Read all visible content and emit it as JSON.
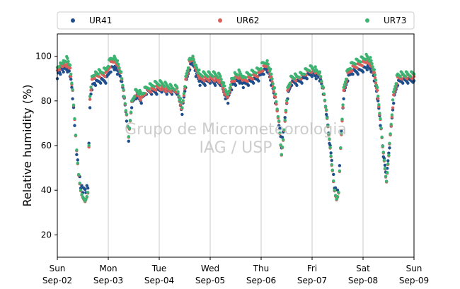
{
  "chart_data": {
    "type": "scatter",
    "ylabel": "Relative humidity (%)",
    "xlabel": "",
    "ylim": [
      10,
      110
    ],
    "yticks": [
      20,
      40,
      60,
      80,
      100
    ],
    "xlim": [
      0,
      7
    ],
    "x_unit": "days",
    "x_ticks": [
      {
        "day": "Sun",
        "date": "Sep-02"
      },
      {
        "day": "Mon",
        "date": "Sep-03"
      },
      {
        "day": "Tue",
        "date": "Sep-04"
      },
      {
        "day": "Wed",
        "date": "Sep-05"
      },
      {
        "day": "Thu",
        "date": "Sep-06"
      },
      {
        "day": "Fri",
        "date": "Sep-07"
      },
      {
        "day": "Sat",
        "date": "Sep-08"
      },
      {
        "day": "Sun",
        "date": "Sep-09"
      }
    ],
    "grid": "vertical",
    "legend_position": "top",
    "watermark": [
      "Grupo de Micrometeorologia",
      "IAG / USP"
    ],
    "series": [
      {
        "name": "UR41",
        "color": "#1f4e8c",
        "points": [
          [
            0.0,
            91
          ],
          [
            0.06,
            93
          ],
          [
            0.12,
            94
          ],
          [
            0.2,
            94
          ],
          [
            0.25,
            92
          ],
          [
            0.3,
            82
          ],
          [
            0.34,
            70
          ],
          [
            0.38,
            57
          ],
          [
            0.42,
            48
          ],
          [
            0.46,
            42
          ],
          [
            0.5,
            40
          ],
          [
            0.56,
            40
          ],
          [
            0.6,
            42
          ],
          [
            0.64,
            78
          ],
          [
            0.68,
            86
          ],
          [
            0.75,
            88
          ],
          [
            0.85,
            89
          ],
          [
            0.95,
            89
          ],
          [
            1.05,
            94
          ],
          [
            1.12,
            95
          ],
          [
            1.18,
            93
          ],
          [
            1.25,
            90
          ],
          [
            1.3,
            83
          ],
          [
            1.36,
            72
          ],
          [
            1.4,
            63
          ],
          [
            1.46,
            78
          ],
          [
            1.55,
            82
          ],
          [
            1.65,
            80
          ],
          [
            1.75,
            84
          ],
          [
            1.85,
            84
          ],
          [
            1.95,
            84
          ],
          [
            2.05,
            85
          ],
          [
            2.15,
            84
          ],
          [
            2.25,
            84
          ],
          [
            2.35,
            84
          ],
          [
            2.45,
            75
          ],
          [
            2.52,
            87
          ],
          [
            2.6,
            95
          ],
          [
            2.66,
            97
          ],
          [
            2.72,
            92
          ],
          [
            2.8,
            88
          ],
          [
            2.9,
            88
          ],
          [
            3.0,
            89
          ],
          [
            3.1,
            88
          ],
          [
            3.2,
            88
          ],
          [
            3.3,
            82
          ],
          [
            3.35,
            80
          ],
          [
            3.42,
            86
          ],
          [
            3.5,
            88
          ],
          [
            3.58,
            89
          ],
          [
            3.65,
            87
          ],
          [
            3.75,
            88
          ],
          [
            3.85,
            89
          ],
          [
            3.95,
            90
          ],
          [
            4.05,
            93
          ],
          [
            4.12,
            94
          ],
          [
            4.2,
            88
          ],
          [
            4.28,
            80
          ],
          [
            4.35,
            70
          ],
          [
            4.4,
            60
          ],
          [
            4.45,
            68
          ],
          [
            4.52,
            82
          ],
          [
            4.6,
            88
          ],
          [
            4.7,
            88
          ],
          [
            4.8,
            89
          ],
          [
            4.9,
            91
          ],
          [
            5.0,
            92
          ],
          [
            5.08,
            91
          ],
          [
            5.15,
            90
          ],
          [
            5.22,
            84
          ],
          [
            5.28,
            75
          ],
          [
            5.34,
            62
          ],
          [
            5.4,
            50
          ],
          [
            5.44,
            42
          ],
          [
            5.48,
            38
          ],
          [
            5.52,
            40
          ],
          [
            5.56,
            60
          ],
          [
            5.62,
            82
          ],
          [
            5.7,
            90
          ],
          [
            5.8,
            93
          ],
          [
            5.9,
            93
          ],
          [
            6.0,
            94
          ],
          [
            6.08,
            95
          ],
          [
            6.16,
            94
          ],
          [
            6.22,
            90
          ],
          [
            6.28,
            82
          ],
          [
            6.34,
            70
          ],
          [
            6.4,
            56
          ],
          [
            6.46,
            45
          ],
          [
            6.52,
            60
          ],
          [
            6.6,
            80
          ],
          [
            6.68,
            88
          ],
          [
            6.78,
            89
          ],
          [
            6.88,
            89
          ],
          [
            7.0,
            89
          ]
        ]
      },
      {
        "name": "UR62",
        "color": "#d95f5a",
        "points": [
          [
            0.0,
            93
          ],
          [
            0.06,
            95
          ],
          [
            0.12,
            96
          ],
          [
            0.2,
            96
          ],
          [
            0.25,
            94
          ],
          [
            0.3,
            84
          ],
          [
            0.34,
            71
          ],
          [
            0.38,
            57
          ],
          [
            0.42,
            46
          ],
          [
            0.46,
            39
          ],
          [
            0.5,
            36
          ],
          [
            0.56,
            35
          ],
          [
            0.6,
            38
          ],
          [
            0.64,
            80
          ],
          [
            0.68,
            89
          ],
          [
            0.75,
            91
          ],
          [
            0.85,
            92
          ],
          [
            0.95,
            92
          ],
          [
            1.05,
            97
          ],
          [
            1.12,
            98
          ],
          [
            1.18,
            96
          ],
          [
            1.25,
            92
          ],
          [
            1.3,
            84
          ],
          [
            1.36,
            73
          ],
          [
            1.4,
            63
          ],
          [
            1.46,
            79
          ],
          [
            1.55,
            84
          ],
          [
            1.65,
            81
          ],
          [
            1.75,
            85
          ],
          [
            1.85,
            85
          ],
          [
            1.95,
            86
          ],
          [
            2.05,
            86
          ],
          [
            2.15,
            85
          ],
          [
            2.25,
            85
          ],
          [
            2.35,
            85
          ],
          [
            2.45,
            76
          ],
          [
            2.52,
            89
          ],
          [
            2.6,
            97
          ],
          [
            2.66,
            99
          ],
          [
            2.72,
            94
          ],
          [
            2.8,
            90
          ],
          [
            2.9,
            90
          ],
          [
            3.0,
            90
          ],
          [
            3.1,
            90
          ],
          [
            3.2,
            89
          ],
          [
            3.3,
            83
          ],
          [
            3.35,
            81
          ],
          [
            3.42,
            88
          ],
          [
            3.5,
            90
          ],
          [
            3.58,
            91
          ],
          [
            3.65,
            89
          ],
          [
            3.75,
            90
          ],
          [
            3.85,
            91
          ],
          [
            3.95,
            92
          ],
          [
            4.05,
            95
          ],
          [
            4.12,
            96
          ],
          [
            4.2,
            90
          ],
          [
            4.28,
            81
          ],
          [
            4.35,
            70
          ],
          [
            4.4,
            55
          ],
          [
            4.45,
            66
          ],
          [
            4.52,
            84
          ],
          [
            4.6,
            90
          ],
          [
            4.7,
            90
          ],
          [
            4.8,
            91
          ],
          [
            4.9,
            93
          ],
          [
            5.0,
            94
          ],
          [
            5.08,
            93
          ],
          [
            5.15,
            92
          ],
          [
            5.22,
            85
          ],
          [
            5.28,
            75
          ],
          [
            5.34,
            62
          ],
          [
            5.4,
            48
          ],
          [
            5.44,
            39
          ],
          [
            5.48,
            35
          ],
          [
            5.52,
            38
          ],
          [
            5.56,
            58
          ],
          [
            5.62,
            84
          ],
          [
            5.7,
            92
          ],
          [
            5.8,
            95
          ],
          [
            5.9,
            96
          ],
          [
            6.0,
            97
          ],
          [
            6.08,
            98
          ],
          [
            6.16,
            96
          ],
          [
            6.22,
            92
          ],
          [
            6.28,
            84
          ],
          [
            6.34,
            71
          ],
          [
            6.4,
            56
          ],
          [
            6.46,
            43
          ],
          [
            6.52,
            60
          ],
          [
            6.6,
            82
          ],
          [
            6.68,
            90
          ],
          [
            6.78,
            91
          ],
          [
            6.88,
            91
          ],
          [
            7.0,
            91
          ]
        ]
      },
      {
        "name": "UR73",
        "color": "#3cb371",
        "points": [
          [
            0.0,
            95
          ],
          [
            0.06,
            97
          ],
          [
            0.12,
            98
          ],
          [
            0.2,
            99
          ],
          [
            0.25,
            96
          ],
          [
            0.3,
            85
          ],
          [
            0.34,
            72
          ],
          [
            0.38,
            58
          ],
          [
            0.42,
            47
          ],
          [
            0.46,
            40
          ],
          [
            0.5,
            37
          ],
          [
            0.56,
            36
          ],
          [
            0.6,
            39
          ],
          [
            0.64,
            82
          ],
          [
            0.68,
            91
          ],
          [
            0.75,
            93
          ],
          [
            0.85,
            93
          ],
          [
            0.95,
            94
          ],
          [
            1.05,
            99
          ],
          [
            1.12,
            100
          ],
          [
            1.18,
            98
          ],
          [
            1.25,
            93
          ],
          [
            1.3,
            85
          ],
          [
            1.36,
            74
          ],
          [
            1.4,
            64
          ],
          [
            1.46,
            80
          ],
          [
            1.55,
            85
          ],
          [
            1.65,
            83
          ],
          [
            1.75,
            86
          ],
          [
            1.85,
            87
          ],
          [
            1.95,
            88
          ],
          [
            2.05,
            88
          ],
          [
            2.15,
            87
          ],
          [
            2.25,
            86
          ],
          [
            2.35,
            86
          ],
          [
            2.45,
            77
          ],
          [
            2.52,
            91
          ],
          [
            2.6,
            99
          ],
          [
            2.66,
            100
          ],
          [
            2.72,
            96
          ],
          [
            2.8,
            92
          ],
          [
            2.9,
            92
          ],
          [
            3.0,
            92
          ],
          [
            3.1,
            92
          ],
          [
            3.2,
            91
          ],
          [
            3.3,
            85
          ],
          [
            3.35,
            83
          ],
          [
            3.42,
            90
          ],
          [
            3.5,
            92
          ],
          [
            3.58,
            93
          ],
          [
            3.65,
            91
          ],
          [
            3.75,
            92
          ],
          [
            3.85,
            93
          ],
          [
            3.95,
            94
          ],
          [
            4.05,
            97
          ],
          [
            4.12,
            98
          ],
          [
            4.2,
            92
          ],
          [
            4.28,
            83
          ],
          [
            4.35,
            71
          ],
          [
            4.4,
            56
          ],
          [
            4.45,
            67
          ],
          [
            4.52,
            86
          ],
          [
            4.6,
            91
          ],
          [
            4.7,
            91
          ],
          [
            4.8,
            92
          ],
          [
            4.9,
            94
          ],
          [
            5.0,
            95
          ],
          [
            5.08,
            94
          ],
          [
            5.15,
            93
          ],
          [
            5.22,
            86
          ],
          [
            5.28,
            76
          ],
          [
            5.34,
            63
          ],
          [
            5.4,
            49
          ],
          [
            5.44,
            40
          ],
          [
            5.48,
            36
          ],
          [
            5.52,
            39
          ],
          [
            5.56,
            59
          ],
          [
            5.62,
            86
          ],
          [
            5.7,
            94
          ],
          [
            5.8,
            97
          ],
          [
            5.9,
            98
          ],
          [
            6.0,
            99
          ],
          [
            6.08,
            100
          ],
          [
            6.16,
            98
          ],
          [
            6.22,
            94
          ],
          [
            6.28,
            86
          ],
          [
            6.34,
            72
          ],
          [
            6.4,
            57
          ],
          [
            6.46,
            44
          ],
          [
            6.52,
            61
          ],
          [
            6.6,
            84
          ],
          [
            6.68,
            92
          ],
          [
            6.78,
            92
          ],
          [
            6.88,
            92
          ],
          [
            7.0,
            92
          ]
        ]
      }
    ]
  }
}
